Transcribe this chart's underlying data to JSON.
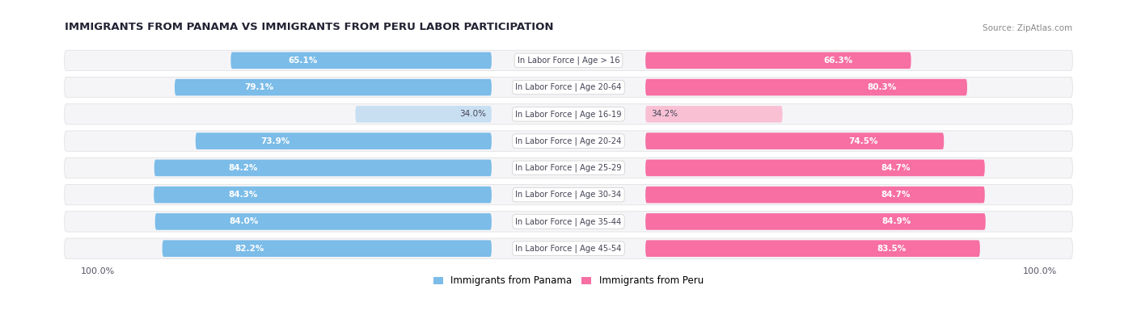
{
  "title": "IMMIGRANTS FROM PANAMA VS IMMIGRANTS FROM PERU LABOR PARTICIPATION",
  "source": "Source: ZipAtlas.com",
  "categories": [
    "In Labor Force | Age > 16",
    "In Labor Force | Age 20-64",
    "In Labor Force | Age 16-19",
    "In Labor Force | Age 20-24",
    "In Labor Force | Age 25-29",
    "In Labor Force | Age 30-34",
    "In Labor Force | Age 35-44",
    "In Labor Force | Age 45-54"
  ],
  "panama_values": [
    65.1,
    79.1,
    34.0,
    73.9,
    84.2,
    84.3,
    84.0,
    82.2
  ],
  "peru_values": [
    66.3,
    80.3,
    34.2,
    74.5,
    84.7,
    84.7,
    84.9,
    83.5
  ],
  "panama_color": "#7bbce8",
  "panama_color_light": "#c8dff2",
  "peru_color": "#f76fa3",
  "peru_color_light": "#f9c0d4",
  "bar_bg_color": "#ebebf0",
  "row_bg_color": "#f5f5f8",
  "max_value": 100.0,
  "legend_panama": "Immigrants from Panama",
  "legend_peru": "Immigrants from Peru",
  "background_color": "#ffffff",
  "label_box_color": "#ffffff",
  "center_label_color": "#444455"
}
